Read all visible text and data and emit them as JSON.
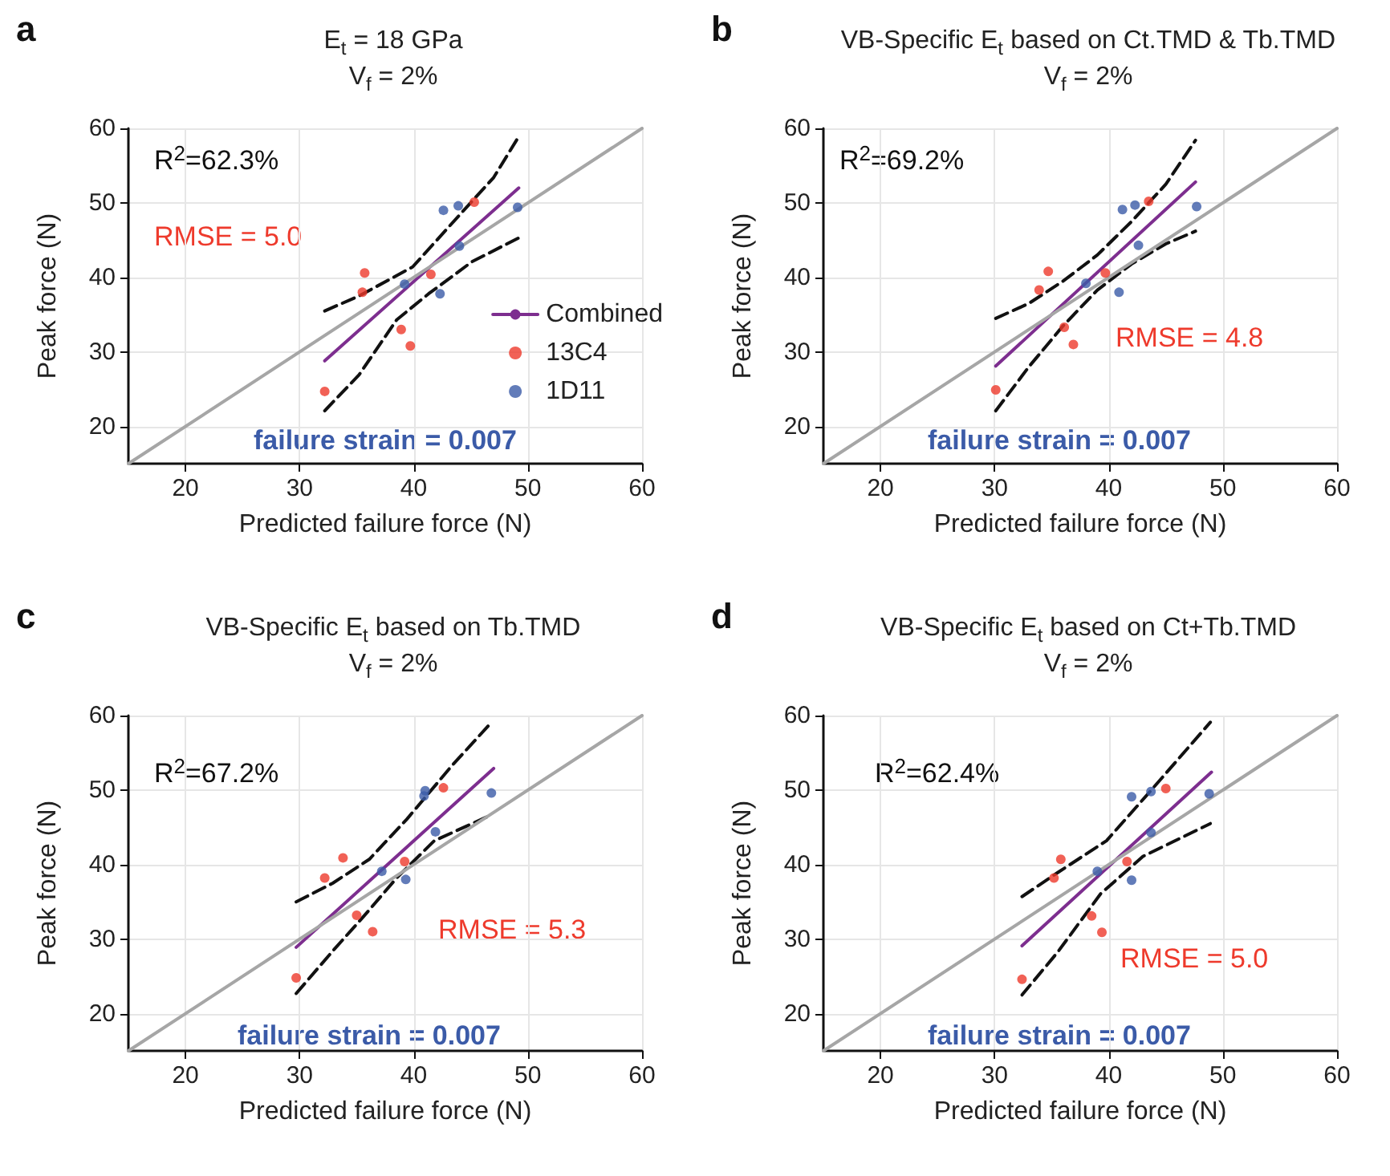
{
  "chart_data": [
    {
      "type": "scatter",
      "title": "E$_{t}$ = 18 GPa",
      "subtitle": "V$_{f}$ = 2%",
      "xlabel": "Predicted failure force (N)",
      "ylabel": "Peak force (N)",
      "annotations": [
        "a",
        "R$^{2}$=62.3%",
        "RMSE = 5.0",
        "failure strain = 0.007"
      ],
      "xlim": [
        15,
        60
      ],
      "ylim": [
        15,
        60
      ],
      "xticks": [
        20,
        30,
        40,
        50,
        60
      ],
      "yticks": [
        20,
        30,
        40,
        50,
        60
      ],
      "grid": true,
      "legend": "right",
      "series": [
        {
          "type": "scatter",
          "name": "13C4",
          "color": "#ee3a2c",
          "marker": "circle",
          "x": [
            32.2,
            35.5,
            35.7,
            38.9,
            39.7,
            41.5,
            45.3
          ],
          "values": [
            24.7,
            38.0,
            40.6,
            33.0,
            30.8,
            40.4,
            50.1
          ]
        },
        {
          "type": "scatter",
          "name": "1D11",
          "color": "#3b5ba8",
          "marker": "circle",
          "x": [
            42.6,
            43.9,
            49.1,
            42.3,
            39.2,
            44.0
          ],
          "values": [
            49.0,
            49.6,
            49.4,
            37.8,
            39.1,
            44.2
          ]
        },
        {
          "type": "line",
          "name": "Combined",
          "color": "#7d2e8f",
          "marker": "none",
          "line_style": "solid",
          "x": [
            32.2,
            49.2
          ],
          "values": [
            28.8,
            52.0
          ]
        },
        {
          "type": "line",
          "color": "#111111",
          "marker": "none",
          "line_style": "dashed",
          "x": [
            32.2,
            35.2,
            39.9,
            43.2,
            47.0,
            49.2
          ],
          "values": [
            35.5,
            37.5,
            41.4,
            47.0,
            53.4,
            58.9
          ]
        },
        {
          "type": "line",
          "color": "#111111",
          "marker": "none",
          "line_style": "dashed",
          "x": [
            32.2,
            35.2,
            38.5,
            41.3,
            45.1,
            49.2
          ],
          "values": [
            22.1,
            26.9,
            34.3,
            37.8,
            42.1,
            45.3
          ]
        },
        {
          "type": "line",
          "color": "#a6a6a6",
          "marker": "none",
          "line_style": "solid",
          "x": [
            15,
            60
          ],
          "values": [
            15,
            60
          ]
        }
      ]
    },
    {
      "type": "scatter",
      "title": "VB-Specific E$_{t}$ based on Ct.TMD & Tb.TMD",
      "subtitle": "V$_{f}$ = 2%",
      "xlabel": "Predicted failure force (N)",
      "ylabel": "Peak force (N)",
      "annotations": [
        "b",
        "R$^{2}$=69.2%",
        "RMSE = 4.8",
        "failure strain = 0.007"
      ],
      "xlim": [
        15,
        60
      ],
      "ylim": [
        15,
        60
      ],
      "xticks": [
        20,
        30,
        40,
        50,
        60
      ],
      "yticks": [
        20,
        30,
        40,
        50,
        60
      ],
      "grid": true,
      "series": [
        {
          "type": "scatter",
          "color": "#ee3a2c",
          "marker": "circle",
          "x": [
            30.1,
            33.9,
            34.7,
            36.1,
            36.9,
            39.7,
            43.5
          ],
          "values": [
            24.9,
            38.3,
            40.8,
            33.3,
            31.0,
            40.6,
            50.2
          ]
        },
        {
          "type": "scatter",
          "color": "#3b5ba8",
          "marker": "circle",
          "x": [
            38.0,
            41.2,
            42.3,
            42.6,
            40.9,
            47.7
          ],
          "values": [
            39.2,
            49.1,
            49.7,
            44.3,
            38.0,
            49.5
          ]
        },
        {
          "type": "line",
          "color": "#7d2e8f",
          "marker": "none",
          "line_style": "solid",
          "x": [
            30.1,
            47.6
          ],
          "values": [
            28.1,
            52.8
          ]
        },
        {
          "type": "line",
          "color": "#111111",
          "marker": "none",
          "line_style": "dashed",
          "x": [
            30.1,
            33.0,
            36.0,
            39.0,
            42.0,
            45.0,
            47.6
          ],
          "values": [
            34.5,
            36.5,
            39.5,
            43.0,
            47.5,
            52.5,
            58.4
          ]
        },
        {
          "type": "line",
          "color": "#111111",
          "marker": "none",
          "line_style": "dashed",
          "x": [
            30.1,
            33.0,
            36.0,
            39.0,
            42.0,
            45.0,
            47.6
          ],
          "values": [
            22.1,
            28.0,
            33.5,
            38.3,
            41.8,
            44.5,
            46.2
          ]
        },
        {
          "type": "line",
          "color": "#a6a6a6",
          "marker": "none",
          "line_style": "solid",
          "x": [
            15,
            60
          ],
          "values": [
            15,
            60
          ]
        }
      ]
    },
    {
      "type": "scatter",
      "title": "VB-Specific E$_{t}$ based on Tb.TMD",
      "subtitle": "V$_{f}$ = 2%",
      "xlabel": "Predicted failure force (N)",
      "ylabel": "Peak force (N)",
      "annotations": [
        "c",
        "R$^{2}$=67.2%",
        "RMSE = 5.3",
        "failure strain = 0.007"
      ],
      "xlim": [
        15,
        60
      ],
      "ylim": [
        15,
        60
      ],
      "xticks": [
        20,
        30,
        40,
        50,
        60
      ],
      "yticks": [
        20,
        30,
        40,
        50,
        60
      ],
      "grid": true,
      "series": [
        {
          "type": "scatter",
          "color": "#ee3a2c",
          "marker": "circle",
          "x": [
            29.7,
            32.2,
            33.8,
            35.0,
            36.4,
            39.2,
            42.6
          ],
          "values": [
            24.8,
            38.2,
            40.9,
            33.2,
            31.0,
            40.4,
            50.3
          ]
        },
        {
          "type": "scatter",
          "color": "#3b5ba8",
          "marker": "circle",
          "x": [
            41.0,
            40.9,
            46.8,
            41.9,
            39.3,
            37.2
          ],
          "values": [
            49.9,
            49.2,
            49.6,
            44.4,
            38.0,
            39.1
          ]
        },
        {
          "type": "line",
          "color": "#7d2e8f",
          "marker": "none",
          "line_style": "solid",
          "x": [
            29.7,
            47.0
          ],
          "values": [
            28.9,
            52.9
          ]
        },
        {
          "type": "line",
          "color": "#111111",
          "marker": "none",
          "line_style": "dashed",
          "x": [
            29.7,
            32.9,
            36.1,
            39.4,
            43.3,
            46.7
          ],
          "values": [
            35.0,
            37.5,
            40.7,
            46.1,
            53.2,
            58.9
          ]
        },
        {
          "type": "line",
          "color": "#111111",
          "marker": "none",
          "line_style": "dashed",
          "x": [
            29.7,
            32.9,
            35.7,
            38.5,
            41.8,
            46.7
          ],
          "values": [
            22.7,
            28.4,
            33.2,
            38.2,
            43.2,
            46.6
          ]
        },
        {
          "type": "line",
          "color": "#a6a6a6",
          "marker": "none",
          "line_style": "solid",
          "x": [
            15,
            60
          ],
          "values": [
            15,
            60
          ]
        }
      ]
    },
    {
      "type": "scatter",
      "title": "VB-Specific E$_{t}$ based on Ct+Tb.TMD",
      "subtitle": "V$_{f}$ = 2%",
      "xlabel": "Predicted failure force (N)",
      "ylabel": "Peak force (N)",
      "annotations": [
        "d",
        "R$^{2}$=62.4%",
        "RMSE = 5.0",
        "failure strain = 0.007"
      ],
      "xlim": [
        15,
        60
      ],
      "ylim": [
        15,
        60
      ],
      "xticks": [
        20,
        30,
        40,
        50,
        60
      ],
      "yticks": [
        20,
        30,
        40,
        50,
        60
      ],
      "grid": true,
      "series": [
        {
          "type": "scatter",
          "color": "#ee3a2c",
          "marker": "circle",
          "x": [
            32.4,
            35.2,
            35.8,
            38.5,
            39.4,
            41.6,
            45.0
          ],
          "values": [
            24.6,
            38.2,
            40.7,
            33.1,
            30.9,
            40.4,
            50.2
          ]
        },
        {
          "type": "scatter",
          "color": "#3b5ba8",
          "marker": "circle",
          "x": [
            42.0,
            43.7,
            48.8,
            42.0,
            39.0,
            43.7
          ],
          "values": [
            49.1,
            49.8,
            49.5,
            37.9,
            39.1,
            44.3
          ]
        },
        {
          "type": "line",
          "color": "#7d2e8f",
          "marker": "none",
          "line_style": "solid",
          "x": [
            32.4,
            49.0
          ],
          "values": [
            29.1,
            52.4
          ]
        },
        {
          "type": "line",
          "color": "#111111",
          "marker": "none",
          "line_style": "dashed",
          "x": [
            32.4,
            35.5,
            39.8,
            43.5,
            48.9
          ],
          "values": [
            35.7,
            38.9,
            43.2,
            49.6,
            59.1
          ]
        },
        {
          "type": "line",
          "color": "#111111",
          "marker": "none",
          "line_style": "dashed",
          "x": [
            32.4,
            35.5,
            39.3,
            43.0,
            48.9
          ],
          "values": [
            22.5,
            28.2,
            36.1,
            41.1,
            45.5
          ]
        },
        {
          "type": "line",
          "color": "#a6a6a6",
          "marker": "none",
          "line_style": "solid",
          "x": [
            15,
            60
          ],
          "values": [
            15,
            60
          ]
        }
      ]
    }
  ]
}
